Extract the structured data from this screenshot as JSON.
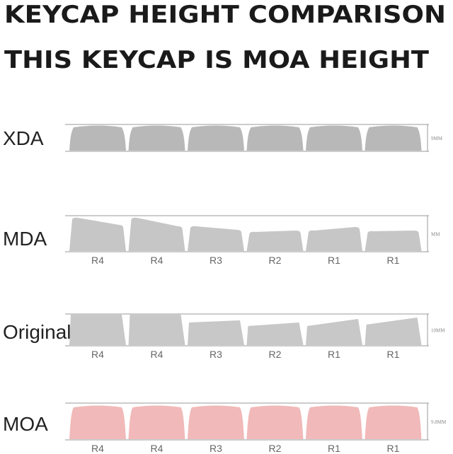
{
  "title": [
    "KEYCAP HEIGHT COMPARISON",
    "THIS KEYCAP IS MOA HEIGHT"
  ],
  "profiles": [
    {
      "name": "XDA",
      "height": "9MM"
    },
    {
      "name": "MDA",
      "height": "MM",
      "rows": [
        "R4",
        "R4",
        "R3",
        "R2",
        "R1",
        "R1"
      ]
    },
    {
      "name": "Original",
      "height": "10MM",
      "rows": [
        "R4",
        "R4",
        "R3",
        "R2",
        "R1",
        "R1"
      ]
    },
    {
      "name": "MOA",
      "height": "9.8MM",
      "rows": [
        "R4",
        "R4",
        "R3",
        "R2",
        "R1",
        "R1"
      ]
    }
  ]
}
